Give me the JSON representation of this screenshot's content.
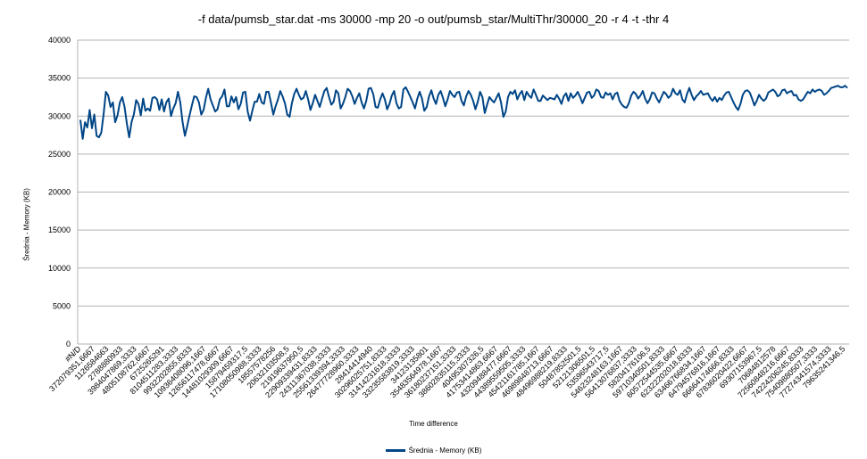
{
  "colors": {
    "series": "#004586",
    "grid": "#b3b3b3",
    "axis": "#b3b3b3"
  },
  "chart_data": {
    "type": "line",
    "title": "-f data/pumsb_star.dat -ms 30000 -mp 20 -o out/pumsb_star/MultiThr/30000_20 -r 4 -t -thr 4",
    "xlabel": "Time difference",
    "ylabel": "Średnia - Memory (KB)",
    "ylim": [
      0,
      40000
    ],
    "yticks": [
      0,
      5000,
      10000,
      15000,
      20000,
      25000,
      30000,
      35000,
      40000
    ],
    "grid": true,
    "legend_position": "bottom",
    "x_tick_labels": [
      "#N/D",
      "372079351,6667",
      "1126584663",
      "2788880933",
      "3984047869,3333",
      "4805108762,6667",
      "6725265291",
      "8104511283,3333",
      "9932202855,8333",
      "10936408096,1667",
      "12656117478,6667",
      "14481029309,6667",
      "15879459317,5",
      "17108050988,3333",
      "18557578256",
      "20632103508,5",
      "21919637950,5",
      "22909339431,8333",
      "24311367038,3333",
      "25561339394,3333",
      "26477728960,3333",
      "28414414940",
      "30296025751,8333",
      "31414231618,3333",
      "33235583819,3333",
      "34123135801",
      "35483564978,1667",
      "36180237151,3333",
      "38602835115,3333",
      "40495307326,5",
      "41753414863,6667",
      "43209488477,6667",
      "44389559505,3333",
      "45421161785,1667",
      "46989848713,6667",
      "48496988219,8333",
      "50487852501,5",
      "52121306501,5",
      "53596543717,5",
      "54623248163,1667",
      "56413076837,3333",
      "58204176106,5",
      "59710340501,8333",
      "60572544535,6667",
      "62322202018,8333",
      "63466766834,1667",
      "64794576816,1667",
      "66664174666,8333",
      "67836020422,6667",
      "69307153967,5",
      "70684812578",
      "72560848216,6667",
      "74224206245,8333",
      "75409880507,3333",
      "77274341574,3333",
      "79635241346,5"
    ],
    "series": [
      {
        "name": "Średnia - Memory (KB)",
        "values": [
          29500,
          27000,
          29200,
          28500,
          30800,
          28400,
          30200,
          27400,
          27200,
          27800,
          30200,
          33200,
          32700,
          31200,
          31800,
          29200,
          30100,
          31800,
          32500,
          31200,
          29000,
          27200,
          29200,
          30200,
          32100,
          31600,
          30100,
          32300,
          30700,
          31000,
          30700,
          32400,
          32500,
          32200,
          30800,
          32200,
          30600,
          31800,
          32300,
          30000,
          31000,
          31700,
          33200,
          31800,
          29200,
          27400,
          28700,
          30100,
          31400,
          32600,
          32500,
          31800,
          30200,
          30800,
          32400,
          33600,
          32200,
          31400,
          30600,
          30900,
          32200,
          32600,
          33500,
          31300,
          31300,
          32600,
          31800,
          32500,
          30900,
          31600,
          33100,
          33200,
          30600,
          29400,
          30700,
          31900,
          31900,
          32900,
          31800,
          31600,
          33200,
          33200,
          31800,
          30200,
          31300,
          32200,
          33300,
          32600,
          31700,
          30200,
          29900,
          31700,
          32900,
          33600,
          32800,
          32200,
          32400,
          33300,
          32200,
          30800,
          31700,
          32800,
          32000,
          31200,
          32300,
          33300,
          33700,
          32500,
          31500,
          31900,
          33400,
          33000,
          31000,
          31600,
          32500,
          33600,
          33300,
          32600,
          31600,
          32400,
          33000,
          31800,
          31000,
          32000,
          33600,
          33700,
          32900,
          31200,
          31100,
          32200,
          33000,
          32200,
          30900,
          31600,
          32700,
          33300,
          31700,
          31000,
          31200,
          33500,
          33800,
          33200,
          32500,
          31800,
          31000,
          32300,
          33200,
          32300,
          30700,
          31200,
          32600,
          33400,
          32300,
          31600,
          32800,
          33300,
          32400,
          31300,
          32200,
          33300,
          32800,
          32500,
          33100,
          33200,
          32000,
          31400,
          32600,
          33300,
          32800,
          32000,
          30900,
          31900,
          33200,
          32500,
          30400,
          31500,
          32500,
          32100,
          31800,
          32400,
          33000,
          31800,
          29900,
          30600,
          32500,
          33200,
          32900,
          33400,
          32200,
          32900,
          33300,
          32100,
          33200,
          32700,
          32400,
          33500,
          32800,
          32000,
          32000,
          32700,
          32400,
          32100,
          32400,
          32300,
          32200,
          32800,
          32300,
          31600,
          32600,
          33000,
          32000,
          33000,
          32400,
          32700,
          33200,
          32500,
          31700,
          32400,
          33100,
          33200,
          32400,
          32700,
          33500,
          33300,
          32500,
          32400,
          33100,
          32800,
          33000,
          32200,
          32900,
          33100,
          32000,
          31500,
          31200,
          31100,
          31700,
          32700,
          33200,
          32900,
          32300,
          32700,
          33300,
          32300,
          31700,
          32200,
          33100,
          33000,
          32300,
          31800,
          32500,
          33200,
          32900,
          32400,
          32700,
          33600,
          33000,
          32800,
          33400,
          32200,
          31800,
          32900,
          33700,
          32800,
          32100,
          32600,
          32900,
          33300,
          32800,
          32900,
          33000,
          32400,
          32000,
          32500,
          31900,
          32400,
          32100,
          32700,
          33100,
          33200,
          32500,
          31800,
          31200,
          30800,
          31600,
          32800,
          33300,
          33400,
          33100,
          32300,
          31400,
          32000,
          32800,
          32300,
          32000,
          32300,
          33100,
          33300,
          33500,
          33200,
          32600,
          32800,
          33400,
          33500,
          33000,
          33200,
          33300,
          32700,
          32800,
          32200,
          32000,
          32200,
          32700,
          33200,
          33000,
          33500,
          33200,
          33400,
          33500,
          33300,
          32800,
          33000,
          33300,
          33700,
          33800,
          33900,
          34000,
          33800,
          33800,
          34000,
          33700
        ]
      }
    ]
  }
}
